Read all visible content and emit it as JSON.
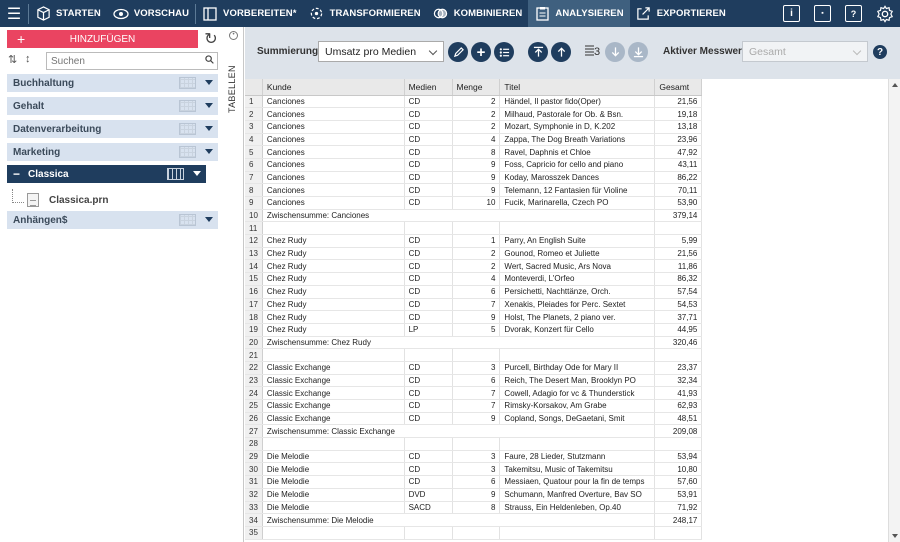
{
  "nav": {
    "items": [
      {
        "label": "STARTEN",
        "icon": "cube-icon"
      },
      {
        "label": "VORSCHAU",
        "icon": "eye-icon"
      },
      {
        "label": "VORBEREITEN*",
        "icon": "columns-icon"
      },
      {
        "label": "TRANSFORMIEREN",
        "icon": "transform-icon"
      },
      {
        "label": "KOMBINIEREN",
        "icon": "combine-icon"
      },
      {
        "label": "ANALYSIEREN",
        "icon": "clipboard-icon",
        "active": true
      },
      {
        "label": "EXPORTIEREN",
        "icon": "export-icon"
      }
    ]
  },
  "sidebar": {
    "add_label": "HINZUFÜGEN",
    "search_placeholder": "Suchen",
    "tab_label": "TABELLEN",
    "groups": [
      {
        "label": "Buchhaltung"
      },
      {
        "label": "Gehalt"
      },
      {
        "label": "Datenverarbeitung"
      },
      {
        "label": "Marketing"
      },
      {
        "label": "Classica",
        "selected": true
      },
      {
        "label": "Anhängen$"
      }
    ],
    "file": "Classica.prn"
  },
  "toolbar": {
    "summation_label": "Summierung:",
    "summation_value": "Umsatz pro Medien",
    "sort_level": "3",
    "measure_label": "Aktiver Messwert:",
    "measure_value": "Gesamt",
    "help": "?"
  },
  "table": {
    "headers": [
      "Kunde",
      "Medien",
      "Menge",
      "Titel",
      "Gesamt"
    ],
    "rows": [
      {
        "n": "1",
        "k": "Canciones",
        "m": "CD",
        "q": "2",
        "t": "Händel, Il pastor fido(Oper)",
        "g": "21,56"
      },
      {
        "n": "2",
        "k": "Canciones",
        "m": "CD",
        "q": "2",
        "t": "Milhaud, Pastorale for Ob. & Bsn.",
        "g": "19,18"
      },
      {
        "n": "3",
        "k": "Canciones",
        "m": "CD",
        "q": "2",
        "t": "Mozart, Symphonie in D, K.202",
        "g": "13,18"
      },
      {
        "n": "4",
        "k": "Canciones",
        "m": "CD",
        "q": "4",
        "t": "Zappa, The Dog Breath Variations",
        "g": "23,96"
      },
      {
        "n": "5",
        "k": "Canciones",
        "m": "CD",
        "q": "8",
        "t": "Ravel, Daphnis et Chloe",
        "g": "47,92"
      },
      {
        "n": "6",
        "k": "Canciones",
        "m": "CD",
        "q": "9",
        "t": "Foss, Capricio for cello and piano",
        "g": "43,11"
      },
      {
        "n": "7",
        "k": "Canciones",
        "m": "CD",
        "q": "9",
        "t": "Koday, Marosszek Dances",
        "g": "86,22"
      },
      {
        "n": "8",
        "k": "Canciones",
        "m": "CD",
        "q": "9",
        "t": "Telemann, 12 Fantasien für Violine",
        "g": "70,11"
      },
      {
        "n": "9",
        "k": "Canciones",
        "m": "CD",
        "q": "10",
        "t": "Fucik, Marinarella, Czech PO",
        "g": "53,90"
      },
      {
        "n": "10",
        "sub": "Zwischensumme: Canciones",
        "g": "379,14"
      },
      {
        "n": "11",
        "blank": true
      },
      {
        "n": "12",
        "k": "Chez Rudy",
        "m": "CD",
        "q": "1",
        "t": "Parry, An English Suite",
        "g": "5,99"
      },
      {
        "n": "13",
        "k": "Chez Rudy",
        "m": "CD",
        "q": "2",
        "t": "Gounod, Romeo et Juliette",
        "g": "21,56"
      },
      {
        "n": "14",
        "k": "Chez Rudy",
        "m": "CD",
        "q": "2",
        "t": "Wert, Sacred Music, Ars Nova",
        "g": "11,86"
      },
      {
        "n": "15",
        "k": "Chez Rudy",
        "m": "CD",
        "q": "4",
        "t": "Monteverdi, L'Orfeo",
        "g": "86,32"
      },
      {
        "n": "16",
        "k": "Chez Rudy",
        "m": "CD",
        "q": "6",
        "t": "Persichetti, Nachttänze, Orch.",
        "g": "57,54"
      },
      {
        "n": "17",
        "k": "Chez Rudy",
        "m": "CD",
        "q": "7",
        "t": "Xenakis, Pleiades for Perc. Sextet",
        "g": "54,53"
      },
      {
        "n": "18",
        "k": "Chez Rudy",
        "m": "CD",
        "q": "9",
        "t": "Holst, The Planets, 2 piano ver.",
        "g": "37,71"
      },
      {
        "n": "19",
        "k": "Chez Rudy",
        "m": "LP",
        "q": "5",
        "t": "Dvorak, Konzert für Cello",
        "g": "44,95"
      },
      {
        "n": "20",
        "sub": "Zwischensumme: Chez Rudy",
        "g": "320,46"
      },
      {
        "n": "21",
        "blank": true
      },
      {
        "n": "22",
        "k": "Classic Exchange",
        "m": "CD",
        "q": "3",
        "t": "Purcell, Birthday Ode for Mary II",
        "g": "23,37"
      },
      {
        "n": "23",
        "k": "Classic Exchange",
        "m": "CD",
        "q": "6",
        "t": "Reich, The Desert Man, Brooklyn PO",
        "g": "32,34"
      },
      {
        "n": "24",
        "k": "Classic Exchange",
        "m": "CD",
        "q": "7",
        "t": "Cowell, Adagio for vc & Thunderstick",
        "g": "41,93"
      },
      {
        "n": "25",
        "k": "Classic Exchange",
        "m": "CD",
        "q": "7",
        "t": "Rimsky-Korsakov, Am Grabe",
        "g": "62,93"
      },
      {
        "n": "26",
        "k": "Classic Exchange",
        "m": "CD",
        "q": "9",
        "t": "Copland, Songs, DeGaetani, Smit",
        "g": "48,51"
      },
      {
        "n": "27",
        "sub": "Zwischensumme: Classic Exchange",
        "g": "209,08"
      },
      {
        "n": "28",
        "blank": true
      },
      {
        "n": "29",
        "k": "Die Melodie",
        "m": "CD",
        "q": "3",
        "t": "Faure, 28 Lieder, Stutzmann",
        "g": "53,94"
      },
      {
        "n": "30",
        "k": "Die Melodie",
        "m": "CD",
        "q": "3",
        "t": "Takemitsu, Music of Takemitsu",
        "g": "10,80"
      },
      {
        "n": "31",
        "k": "Die Melodie",
        "m": "CD",
        "q": "6",
        "t": "Messiaen, Quatour pour la fin de temps",
        "g": "57,60"
      },
      {
        "n": "32",
        "k": "Die Melodie",
        "m": "DVD",
        "q": "9",
        "t": "Schumann, Manfred Overture, Bav SO",
        "g": "53,91"
      },
      {
        "n": "33",
        "k": "Die Melodie",
        "m": "SACD",
        "q": "8",
        "t": "Strauss, Ein Heldenleben, Op.40",
        "g": "71,92"
      },
      {
        "n": "34",
        "sub": "Zwischensumme: Die Melodie",
        "g": "248,17"
      },
      {
        "n": "35",
        "blank": true
      }
    ]
  }
}
